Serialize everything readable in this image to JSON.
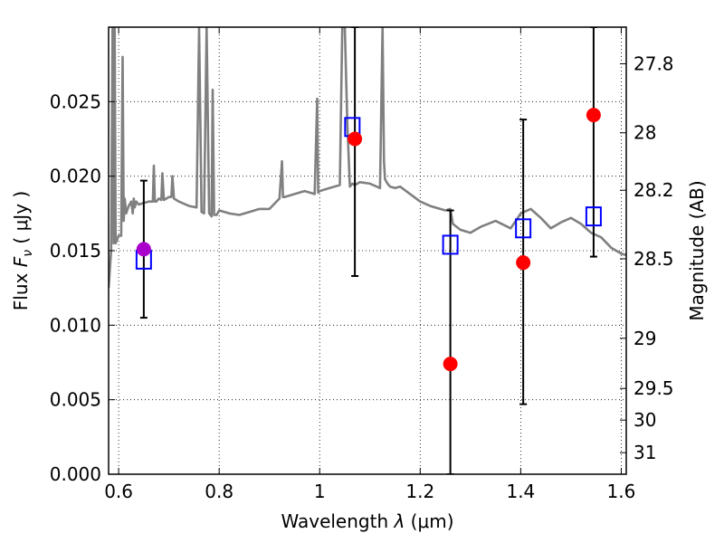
{
  "chart_data": {
    "type": "scatter",
    "title": "",
    "xlabel": "Wavelength  λ (μm)",
    "ylabel": "Flux  F_ν  ( μJy )",
    "ylabel_parts": {
      "prefix": "Flux  ",
      "var": "F",
      "sub": "ν",
      "unit": "  ( μJy )"
    },
    "xlabel_parts": {
      "prefix": "Wavelength  ",
      "var": "λ",
      "unit": " (μm)"
    },
    "y2label": "Magnitude (AB)",
    "xlim": [
      0.58,
      1.61
    ],
    "ylim": [
      0.0,
      0.03
    ],
    "grid": true,
    "x_ticks": [
      {
        "value": 0.6,
        "label": "0.6"
      },
      {
        "value": 0.8,
        "label": "0.8"
      },
      {
        "value": 1.0,
        "label": "1"
      },
      {
        "value": 1.2,
        "label": "1.2"
      },
      {
        "value": 1.4,
        "label": "1.4"
      },
      {
        "value": 1.6,
        "label": "1.6"
      }
    ],
    "y_ticks": [
      {
        "value": 0.0,
        "label": "0.000"
      },
      {
        "value": 0.005,
        "label": "0.005"
      },
      {
        "value": 0.01,
        "label": "0.010"
      },
      {
        "value": 0.015,
        "label": "0.015"
      },
      {
        "value": 0.02,
        "label": "0.020"
      },
      {
        "value": 0.025,
        "label": "0.025"
      }
    ],
    "y2_ticks": [
      {
        "value": 27.8,
        "label": "27.8"
      },
      {
        "value": 28.0,
        "label": "28"
      },
      {
        "value": 28.2,
        "label": "28.2"
      },
      {
        "value": 28.5,
        "label": "28.5"
      },
      {
        "value": 29.0,
        "label": "29"
      },
      {
        "value": 29.5,
        "label": "29.5"
      },
      {
        "value": 30.0,
        "label": "30"
      },
      {
        "value": 31.0,
        "label": "31"
      }
    ],
    "model_spectrum": {
      "color": "#808080",
      "x": [
        0.58,
        0.585,
        0.588,
        0.59,
        0.592,
        0.594,
        0.6,
        0.605,
        0.608,
        0.61,
        0.612,
        0.615,
        0.62,
        0.625,
        0.628,
        0.63,
        0.632,
        0.635,
        0.64,
        0.65,
        0.66,
        0.668,
        0.67,
        0.672,
        0.675,
        0.68,
        0.685,
        0.687,
        0.69,
        0.7,
        0.705,
        0.707,
        0.71,
        0.72,
        0.74,
        0.755,
        0.76,
        0.765,
        0.77,
        0.775,
        0.78,
        0.785,
        0.787,
        0.79,
        0.795,
        0.8,
        0.82,
        0.84,
        0.86,
        0.88,
        0.9,
        0.92,
        0.925,
        0.927,
        0.93,
        0.95,
        0.97,
        0.99,
        0.995,
        0.997,
        1.0,
        1.02,
        1.04,
        1.045,
        1.05,
        1.055,
        1.06,
        1.065,
        1.07,
        1.08,
        1.1,
        1.12,
        1.125,
        1.128,
        1.13,
        1.135,
        1.14,
        1.15,
        1.16,
        1.18,
        1.2,
        1.22,
        1.25,
        1.26,
        1.265,
        1.28,
        1.3,
        1.32,
        1.35,
        1.38,
        1.4,
        1.42,
        1.44,
        1.46,
        1.48,
        1.5,
        1.52,
        1.54,
        1.56,
        1.58,
        1.6,
        1.61
      ],
      "y": [
        0.0125,
        0.015,
        0.03,
        0.0155,
        0.03,
        0.0155,
        0.016,
        0.016,
        0.028,
        0.017,
        0.0185,
        0.0175,
        0.018,
        0.0183,
        0.0175,
        0.0185,
        0.0179,
        0.0183,
        0.0181,
        0.0182,
        0.0183,
        0.0183,
        0.0207,
        0.0183,
        0.0183,
        0.0185,
        0.0184,
        0.0202,
        0.0184,
        0.0186,
        0.0186,
        0.02,
        0.0185,
        0.0183,
        0.018,
        0.0179,
        0.03,
        0.0176,
        0.0175,
        0.03,
        0.0175,
        0.0173,
        0.0258,
        0.0174,
        0.0174,
        0.0177,
        0.0175,
        0.0174,
        0.0176,
        0.0178,
        0.0178,
        0.0185,
        0.021,
        0.0186,
        0.0186,
        0.0188,
        0.019,
        0.0188,
        0.0252,
        0.0189,
        0.019,
        0.0192,
        0.0194,
        0.03,
        0.03,
        0.0235,
        0.0193,
        0.0195,
        0.0194,
        0.0196,
        0.0195,
        0.0192,
        0.03,
        0.021,
        0.0198,
        0.0195,
        0.0193,
        0.0192,
        0.0193,
        0.0188,
        0.0183,
        0.018,
        0.0177,
        0.0178,
        0.0168,
        0.0164,
        0.0162,
        0.0166,
        0.017,
        0.0165,
        0.0175,
        0.0178,
        0.0172,
        0.0165,
        0.0169,
        0.0172,
        0.0168,
        0.0162,
        0.0159,
        0.0152,
        0.0148,
        0.0147
      ]
    },
    "model_photometry": {
      "name": "",
      "marker": "open-square",
      "color": "#0000ff",
      "x": [
        0.65,
        1.065,
        1.26,
        1.405,
        1.545
      ],
      "y": [
        0.0144,
        0.0233,
        0.0154,
        0.0165,
        0.0173
      ]
    },
    "observed": {
      "name": "",
      "marker": "filled-circle",
      "x": [
        0.65,
        1.07,
        1.26,
        1.405,
        1.545
      ],
      "y": [
        0.0151,
        0.0225,
        0.0074,
        0.0142,
        0.0241
      ],
      "yerr_low": [
        0.0105,
        0.0133,
        0.0,
        0.0047,
        0.0146
      ],
      "yerr_high": [
        0.0197,
        0.03,
        0.0177,
        0.0238,
        0.03
      ],
      "colors": [
        "#aa00cc",
        "#ff0000",
        "#ff0000",
        "#ff0000",
        "#ff0000"
      ],
      "errorbar_color": "#000000"
    }
  }
}
